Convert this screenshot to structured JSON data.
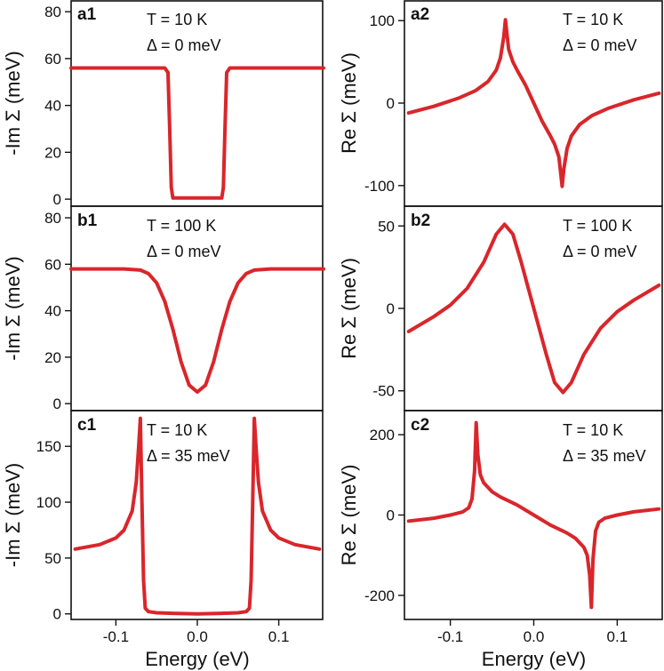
{
  "chart_data": [
    {
      "id": "a1",
      "type": "line",
      "panel_label": "a1",
      "annotations": [
        "T = 10 K",
        "Δ = 0 meV"
      ],
      "ylabel": "-Im Σ (meV)",
      "xlabel": "",
      "xlim": [
        -0.155,
        0.155
      ],
      "ylim": [
        -3,
        85
      ],
      "yticks": [
        0,
        20,
        40,
        60,
        80
      ],
      "xticks": [],
      "series": [
        {
          "color": "#d9262b",
          "x": [
            -0.155,
            -0.04,
            -0.036,
            -0.034,
            -0.032,
            -0.03,
            0.0,
            0.03,
            0.032,
            0.034,
            0.036,
            0.04,
            0.155
          ],
          "y": [
            56,
            56,
            54,
            30,
            5,
            0.5,
            0.5,
            0.5,
            5,
            30,
            54,
            56,
            56
          ]
        }
      ]
    },
    {
      "id": "a2",
      "type": "line",
      "panel_label": "a2",
      "annotations": [
        "T = 10 K",
        "Δ = 0 meV"
      ],
      "ylabel": "Re Σ (meV)",
      "xlabel": "",
      "xlim": [
        -0.155,
        0.155
      ],
      "ylim": [
        -125,
        125
      ],
      "yticks": [
        -100,
        0,
        100
      ],
      "xticks": [],
      "series": [
        {
          "color": "#d9262b",
          "x": [
            -0.15,
            -0.12,
            -0.09,
            -0.07,
            -0.055,
            -0.045,
            -0.04,
            -0.036,
            -0.034,
            -0.032,
            -0.03,
            -0.025,
            -0.02,
            -0.01,
            0.0,
            0.01,
            0.02,
            0.025,
            0.03,
            0.032,
            0.034,
            0.036,
            0.04,
            0.045,
            0.055,
            0.07,
            0.09,
            0.12,
            0.15
          ],
          "y": [
            -12,
            -4,
            6,
            15,
            26,
            40,
            55,
            80,
            101,
            82,
            65,
            50,
            40,
            22,
            0,
            -22,
            -40,
            -50,
            -65,
            -82,
            -101,
            -80,
            -55,
            -40,
            -26,
            -15,
            -6,
            4,
            12
          ]
        }
      ]
    },
    {
      "id": "b1",
      "type": "line",
      "panel_label": "b1",
      "annotations": [
        "T = 100 K",
        "Δ = 0 meV"
      ],
      "ylabel": "-Im Σ (meV)",
      "xlabel": "",
      "xlim": [
        -0.155,
        0.155
      ],
      "ylim": [
        -3,
        85
      ],
      "yticks": [
        0,
        20,
        40,
        60,
        80
      ],
      "xticks": [],
      "series": [
        {
          "color": "#d9262b",
          "x": [
            -0.155,
            -0.09,
            -0.07,
            -0.06,
            -0.05,
            -0.04,
            -0.03,
            -0.02,
            -0.01,
            0.0,
            0.01,
            0.02,
            0.03,
            0.04,
            0.05,
            0.06,
            0.07,
            0.09,
            0.155
          ],
          "y": [
            58,
            58,
            57.5,
            56,
            52,
            44,
            32,
            18,
            8,
            5,
            8,
            18,
            32,
            44,
            52,
            56,
            57.5,
            58,
            58
          ]
        }
      ]
    },
    {
      "id": "b2",
      "type": "line",
      "panel_label": "b2",
      "annotations": [
        "T = 100 K",
        "Δ = 0 meV"
      ],
      "ylabel": "Re Σ (meV)",
      "xlabel": "",
      "xlim": [
        -0.155,
        0.155
      ],
      "ylim": [
        -62,
        62
      ],
      "yticks": [
        -50,
        0,
        50
      ],
      "xticks": [],
      "series": [
        {
          "color": "#d9262b",
          "x": [
            -0.15,
            -0.12,
            -0.1,
            -0.08,
            -0.06,
            -0.045,
            -0.035,
            -0.025,
            -0.015,
            0.0,
            0.015,
            0.025,
            0.035,
            0.045,
            0.06,
            0.08,
            0.1,
            0.12,
            0.15
          ],
          "y": [
            -14,
            -5,
            2,
            12,
            28,
            45,
            51,
            45,
            28,
            0,
            -28,
            -45,
            -51,
            -45,
            -28,
            -12,
            -2,
            5,
            14
          ]
        }
      ]
    },
    {
      "id": "c1",
      "type": "line",
      "panel_label": "c1",
      "annotations": [
        "T = 10 K",
        "Δ = 35 meV"
      ],
      "ylabel": "-Im Σ (meV)",
      "xlabel": "Energy (eV)",
      "xlim": [
        -0.155,
        0.155
      ],
      "ylim": [
        -5,
        182
      ],
      "yticks": [
        0,
        50,
        100,
        150
      ],
      "xticks": [
        -0.1,
        0.0,
        0.1
      ],
      "xtick_labels": [
        "-0.1",
        "0.0",
        "0.1"
      ],
      "series": [
        {
          "color": "#d9262b",
          "x": [
            -0.15,
            -0.12,
            -0.1,
            -0.09,
            -0.08,
            -0.075,
            -0.072,
            -0.07,
            -0.068,
            -0.066,
            -0.064,
            -0.06,
            -0.05,
            -0.03,
            0.0,
            0.03,
            0.05,
            0.06,
            0.064,
            0.066,
            0.068,
            0.07,
            0.072,
            0.075,
            0.08,
            0.09,
            0.1,
            0.12,
            0.15
          ],
          "y": [
            58,
            62,
            68,
            75,
            92,
            118,
            150,
            175,
            100,
            30,
            5,
            2,
            1,
            0.5,
            0,
            0.5,
            1,
            2,
            5,
            30,
            100,
            175,
            150,
            118,
            92,
            75,
            68,
            62,
            58
          ]
        }
      ]
    },
    {
      "id": "c2",
      "type": "line",
      "panel_label": "c2",
      "annotations": [
        "T = 10 K",
        "Δ = 35 meV"
      ],
      "ylabel": "Re Σ (meV)",
      "xlabel": "Energy (eV)",
      "xlim": [
        -0.155,
        0.155
      ],
      "ylim": [
        -260,
        260
      ],
      "yticks": [
        -200,
        0,
        200
      ],
      "xticks": [
        -0.1,
        0.0,
        0.1
      ],
      "xtick_labels": [
        "-0.1",
        "0.0",
        "0.1"
      ],
      "series": [
        {
          "color": "#d9262b",
          "x": [
            -0.15,
            -0.12,
            -0.1,
            -0.085,
            -0.078,
            -0.074,
            -0.071,
            -0.069,
            -0.067,
            -0.064,
            -0.06,
            -0.05,
            -0.04,
            -0.02,
            0.0,
            0.02,
            0.04,
            0.05,
            0.06,
            0.064,
            0.067,
            0.069,
            0.071,
            0.074,
            0.078,
            0.085,
            0.1,
            0.12,
            0.15
          ],
          "y": [
            -15,
            -8,
            0,
            8,
            18,
            40,
            110,
            230,
            150,
            100,
            80,
            58,
            45,
            25,
            0,
            -25,
            -45,
            -58,
            -80,
            -100,
            -150,
            -230,
            -110,
            -40,
            -18,
            -8,
            0,
            8,
            15
          ]
        }
      ]
    }
  ]
}
